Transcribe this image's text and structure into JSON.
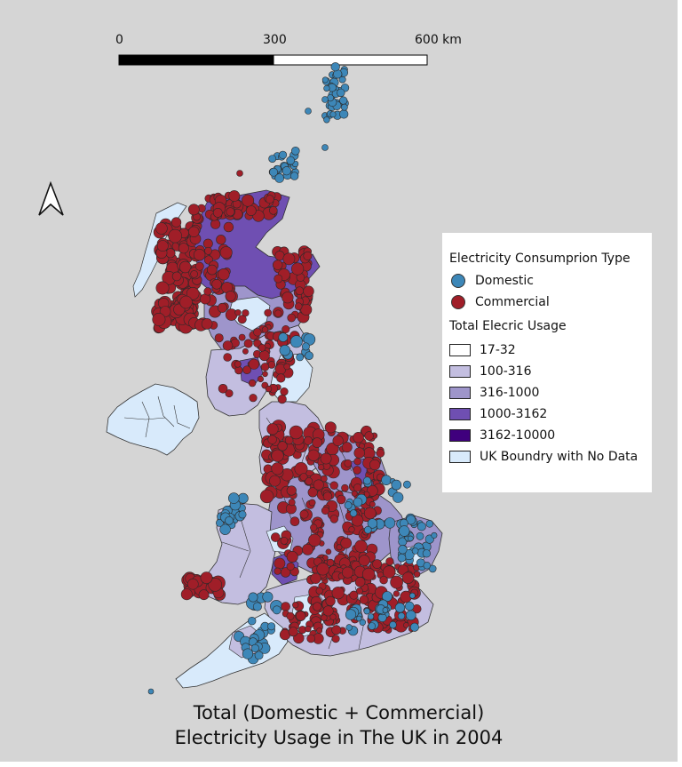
{
  "title_lines": [
    "Total (Domestic + Commercial)",
    "Electricity Usage in The UK in 2004"
  ],
  "scale_bar": {
    "labels": [
      "0",
      "300",
      "600 km"
    ]
  },
  "north_arrow": "north-arrow-icon",
  "legend": {
    "point_heading": "Electricity Consumprion Type",
    "points": [
      {
        "label": "Domestic",
        "color": "#3d87b8"
      },
      {
        "label": "Commercial",
        "color": "#a01e28"
      }
    ],
    "fill_heading": "Total Elecric Usage",
    "classes": [
      {
        "label": "17-32",
        "color": "#ffffff"
      },
      {
        "label": "100-316",
        "color": "#c3bee0"
      },
      {
        "label": "316-1000",
        "color": "#9e95cb"
      },
      {
        "label": "1000-3162",
        "color": "#6f4fb2"
      },
      {
        "label": "3162-10000",
        "color": "#3f007d"
      },
      {
        "label": "UK Boundry with No Data",
        "color": "#d8eafb"
      }
    ]
  },
  "colors": {
    "background": "#d5d5d5",
    "boundary": "#333333"
  }
}
